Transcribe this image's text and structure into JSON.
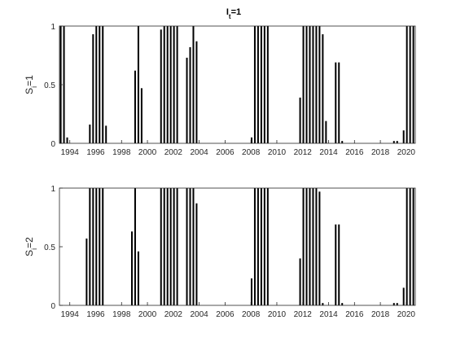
{
  "figure": {
    "title": "I",
    "title_sub": "t",
    "title_tail": "=1"
  },
  "chart_data": [
    {
      "type": "bar",
      "ylabel": {
        "base": "S",
        "sub": "i",
        "tail": "=1"
      },
      "xlim": [
        1993.2,
        2020.7
      ],
      "ylim": [
        0,
        1
      ],
      "xticks": [
        1994,
        1996,
        1998,
        2000,
        2002,
        2004,
        2006,
        2008,
        2010,
        2012,
        2014,
        2016,
        2018,
        2020
      ],
      "xtick_labels": [
        "1994",
        "1996",
        "1998",
        "2000",
        "2002",
        "2004",
        "2006",
        "2008",
        "2010",
        "2012",
        "2014",
        "2016",
        "2018",
        "2020"
      ],
      "yticks": [
        0,
        0.5,
        1
      ],
      "ytick_labels": [
        "0",
        "0.5",
        "1"
      ],
      "bar_color": "#000000",
      "points": [
        [
          1993.3,
          1
        ],
        [
          1993.55,
          1
        ],
        [
          1993.8,
          0.05
        ],
        [
          1995.55,
          0.16
        ],
        [
          1995.8,
          0.93
        ],
        [
          1996.05,
          1
        ],
        [
          1996.3,
          1
        ],
        [
          1996.55,
          1
        ],
        [
          1996.8,
          0.15
        ],
        [
          1999.05,
          0.62
        ],
        [
          1999.3,
          1
        ],
        [
          1999.55,
          0.47
        ],
        [
          2001.05,
          0.97
        ],
        [
          2001.3,
          1
        ],
        [
          2001.55,
          1
        ],
        [
          2001.8,
          1
        ],
        [
          2002.05,
          1
        ],
        [
          2002.3,
          1
        ],
        [
          2003.05,
          0.73
        ],
        [
          2003.3,
          0.82
        ],
        [
          2003.55,
          1
        ],
        [
          2003.8,
          0.87
        ],
        [
          2008.05,
          0.05
        ],
        [
          2008.3,
          1
        ],
        [
          2008.55,
          1
        ],
        [
          2008.8,
          1
        ],
        [
          2009.05,
          1
        ],
        [
          2009.3,
          1
        ],
        [
          2011.8,
          0.39
        ],
        [
          2012.05,
          1
        ],
        [
          2012.3,
          1
        ],
        [
          2012.55,
          1
        ],
        [
          2012.8,
          1
        ],
        [
          2013.05,
          1
        ],
        [
          2013.3,
          1
        ],
        [
          2013.55,
          0.93
        ],
        [
          2013.8,
          0.19
        ],
        [
          2014.55,
          0.69
        ],
        [
          2014.8,
          0.69
        ],
        [
          2015.05,
          0.02
        ],
        [
          2019.05,
          0.02
        ],
        [
          2019.3,
          0.02
        ],
        [
          2019.8,
          0.11
        ],
        [
          2020.05,
          1
        ],
        [
          2020.3,
          1
        ],
        [
          2020.55,
          1
        ]
      ]
    },
    {
      "type": "bar",
      "ylabel": {
        "base": "S",
        "sub": "i",
        "tail": "=2"
      },
      "xlim": [
        1993.2,
        2020.7
      ],
      "ylim": [
        0,
        1
      ],
      "xticks": [
        1994,
        1996,
        1998,
        2000,
        2002,
        2004,
        2006,
        2008,
        2010,
        2012,
        2014,
        2016,
        2018,
        2020
      ],
      "xtick_labels": [
        "1994",
        "1996",
        "1998",
        "2000",
        "2002",
        "2004",
        "2006",
        "2008",
        "2010",
        "2012",
        "2014",
        "2016",
        "2018",
        "2020"
      ],
      "yticks": [
        0,
        0.5,
        1
      ],
      "ytick_labels": [
        "0",
        "0.5",
        "1"
      ],
      "bar_color": "#000000",
      "points": [
        [
          1995.3,
          0.57
        ],
        [
          1995.55,
          1
        ],
        [
          1995.8,
          1
        ],
        [
          1996.05,
          1
        ],
        [
          1996.3,
          1
        ],
        [
          1996.55,
          1
        ],
        [
          1998.8,
          0.63
        ],
        [
          1999.05,
          1
        ],
        [
          1999.3,
          0.46
        ],
        [
          2001.05,
          1
        ],
        [
          2001.3,
          1
        ],
        [
          2001.55,
          1
        ],
        [
          2001.8,
          1
        ],
        [
          2002.05,
          1
        ],
        [
          2002.3,
          1
        ],
        [
          2003.05,
          1
        ],
        [
          2003.3,
          1
        ],
        [
          2003.55,
          1
        ],
        [
          2003.8,
          0.87
        ],
        [
          2008.05,
          0.23
        ],
        [
          2008.3,
          1
        ],
        [
          2008.55,
          1
        ],
        [
          2008.8,
          1
        ],
        [
          2009.05,
          1
        ],
        [
          2009.3,
          1
        ],
        [
          2011.8,
          0.4
        ],
        [
          2012.05,
          1
        ],
        [
          2012.3,
          1
        ],
        [
          2012.55,
          1
        ],
        [
          2012.8,
          1
        ],
        [
          2013.05,
          1
        ],
        [
          2013.3,
          0.97
        ],
        [
          2013.55,
          0.02
        ],
        [
          2014.55,
          0.69
        ],
        [
          2014.8,
          0.69
        ],
        [
          2015.05,
          0.02
        ],
        [
          2019.05,
          0.02
        ],
        [
          2019.3,
          0.02
        ],
        [
          2019.8,
          0.15
        ],
        [
          2020.05,
          1
        ],
        [
          2020.3,
          1
        ],
        [
          2020.55,
          1
        ]
      ]
    }
  ]
}
